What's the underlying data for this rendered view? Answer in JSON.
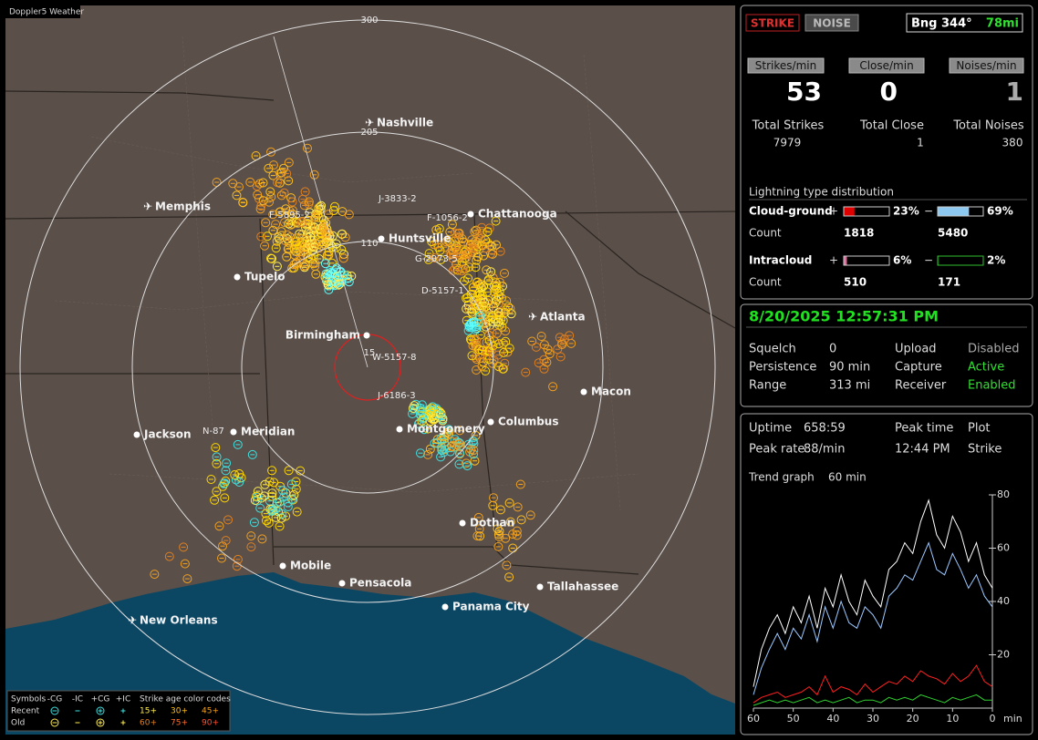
{
  "map": {
    "title": "Doppler5 Weather",
    "range_labels": [
      "300",
      "205",
      "110",
      "15"
    ],
    "cities": [
      "Nashville",
      "Memphis",
      "Chattanooga",
      "Huntsville",
      "Tupelo",
      "Birmingham",
      "Atlanta",
      "Macon",
      "Columbus",
      "Montgomery",
      "Meridian",
      "Jackson",
      "Dothan",
      "Mobile",
      "Pensacola",
      "Tallahassee",
      "Panama City",
      "New Orleans"
    ],
    "strike_ids": [
      "J-3833-2",
      "F-1056-2",
      "F-5895-2",
      "G-2973-5",
      "D-5157-1",
      "W-5157-8",
      "J-6186-3",
      "N-87"
    ],
    "legend": {
      "symbols": "Symbols",
      "types": [
        "-CG",
        "-IC",
        "+CG",
        "+IC"
      ],
      "age_title": "Strike age color codes",
      "rows": [
        "Recent",
        "Old"
      ],
      "ages": [
        [
          "15+",
          "30+",
          "45+"
        ],
        [
          "60+",
          "75+",
          "90+"
        ]
      ]
    }
  },
  "status": {
    "strike": "STRIKE",
    "noise": "NOISE",
    "bearing": "Bng 344°",
    "distance": "78mi"
  },
  "counters": [
    {
      "label": "Strikes/min",
      "value": 53
    },
    {
      "label": "Close/min",
      "value": 0
    },
    {
      "label": "Noises/min",
      "value": 1
    }
  ],
  "totals": [
    {
      "label": "Total Strikes",
      "value": 7979
    },
    {
      "label": "Total Close",
      "value": 1
    },
    {
      "label": "Total Noises",
      "value": 380
    }
  ],
  "distribution": {
    "title": "Lightning type distribution",
    "rows": [
      {
        "name": "Cloud-ground",
        "pos": {
          "value": 23,
          "label": "23%"
        },
        "neg": {
          "value": 69,
          "label": "69%"
        },
        "count_label": "Count",
        "pos_count": 1818,
        "neg_count": 5480
      },
      {
        "name": "Intracloud",
        "pos": {
          "value": 6,
          "label": "6%"
        },
        "neg": {
          "value": 2,
          "label": "2%"
        },
        "count_label": "Count",
        "pos_count": 510,
        "neg_count": 171
      }
    ],
    "plus": "+",
    "minus": "−"
  },
  "info": {
    "datetime": "8/20/2025 12:57:31 PM",
    "rows": [
      [
        "Squelch",
        "0",
        "Upload",
        "Disabled"
      ],
      [
        "Persistence",
        "90 min",
        "Capture",
        "Active"
      ],
      [
        "Range",
        "313 mi",
        "Receiver",
        "Enabled"
      ]
    ]
  },
  "stats": {
    "rows": [
      [
        "Uptime",
        "658:59",
        "Peak time",
        "Plot"
      ],
      [
        "Peak rate",
        "88/min",
        "12:44 PM",
        "Strike"
      ]
    ],
    "trend_label": "Trend graph",
    "trend_value": "60 min"
  },
  "chart_data": {
    "type": "line",
    "x": [
      60,
      58,
      56,
      54,
      52,
      50,
      48,
      46,
      44,
      42,
      40,
      38,
      36,
      34,
      32,
      30,
      28,
      26,
      24,
      22,
      20,
      18,
      16,
      14,
      12,
      10,
      8,
      6,
      4,
      2,
      0
    ],
    "series": [
      {
        "color": "#ffffff",
        "values": [
          8,
          22,
          30,
          35,
          28,
          38,
          32,
          42,
          30,
          45,
          38,
          50,
          40,
          35,
          48,
          42,
          38,
          52,
          55,
          62,
          58,
          70,
          78,
          65,
          60,
          72,
          66,
          55,
          62,
          50,
          45
        ]
      },
      {
        "color": "#9cc8ff",
        "values": [
          5,
          15,
          22,
          28,
          22,
          30,
          26,
          35,
          25,
          38,
          30,
          40,
          32,
          30,
          38,
          35,
          30,
          42,
          45,
          50,
          48,
          55,
          62,
          52,
          50,
          58,
          52,
          45,
          50,
          42,
          38
        ]
      },
      {
        "color": "#ff2020",
        "values": [
          2,
          4,
          5,
          6,
          4,
          5,
          6,
          8,
          5,
          12,
          6,
          8,
          7,
          5,
          9,
          6,
          8,
          10,
          9,
          12,
          10,
          14,
          12,
          11,
          9,
          13,
          10,
          12,
          16,
          10,
          8
        ]
      },
      {
        "color": "#30d030",
        "values": [
          1,
          2,
          3,
          2,
          3,
          2,
          3,
          4,
          2,
          3,
          2,
          3,
          4,
          2,
          3,
          3,
          2,
          4,
          3,
          4,
          3,
          5,
          4,
          3,
          2,
          4,
          3,
          4,
          5,
          3,
          3
        ]
      }
    ],
    "xlim": [
      60,
      0
    ],
    "ylim": [
      0,
      80
    ],
    "xticks": [
      60,
      50,
      40,
      30,
      20,
      10,
      0
    ],
    "yticks": [
      20,
      40,
      60,
      80
    ],
    "x_label": "min"
  }
}
